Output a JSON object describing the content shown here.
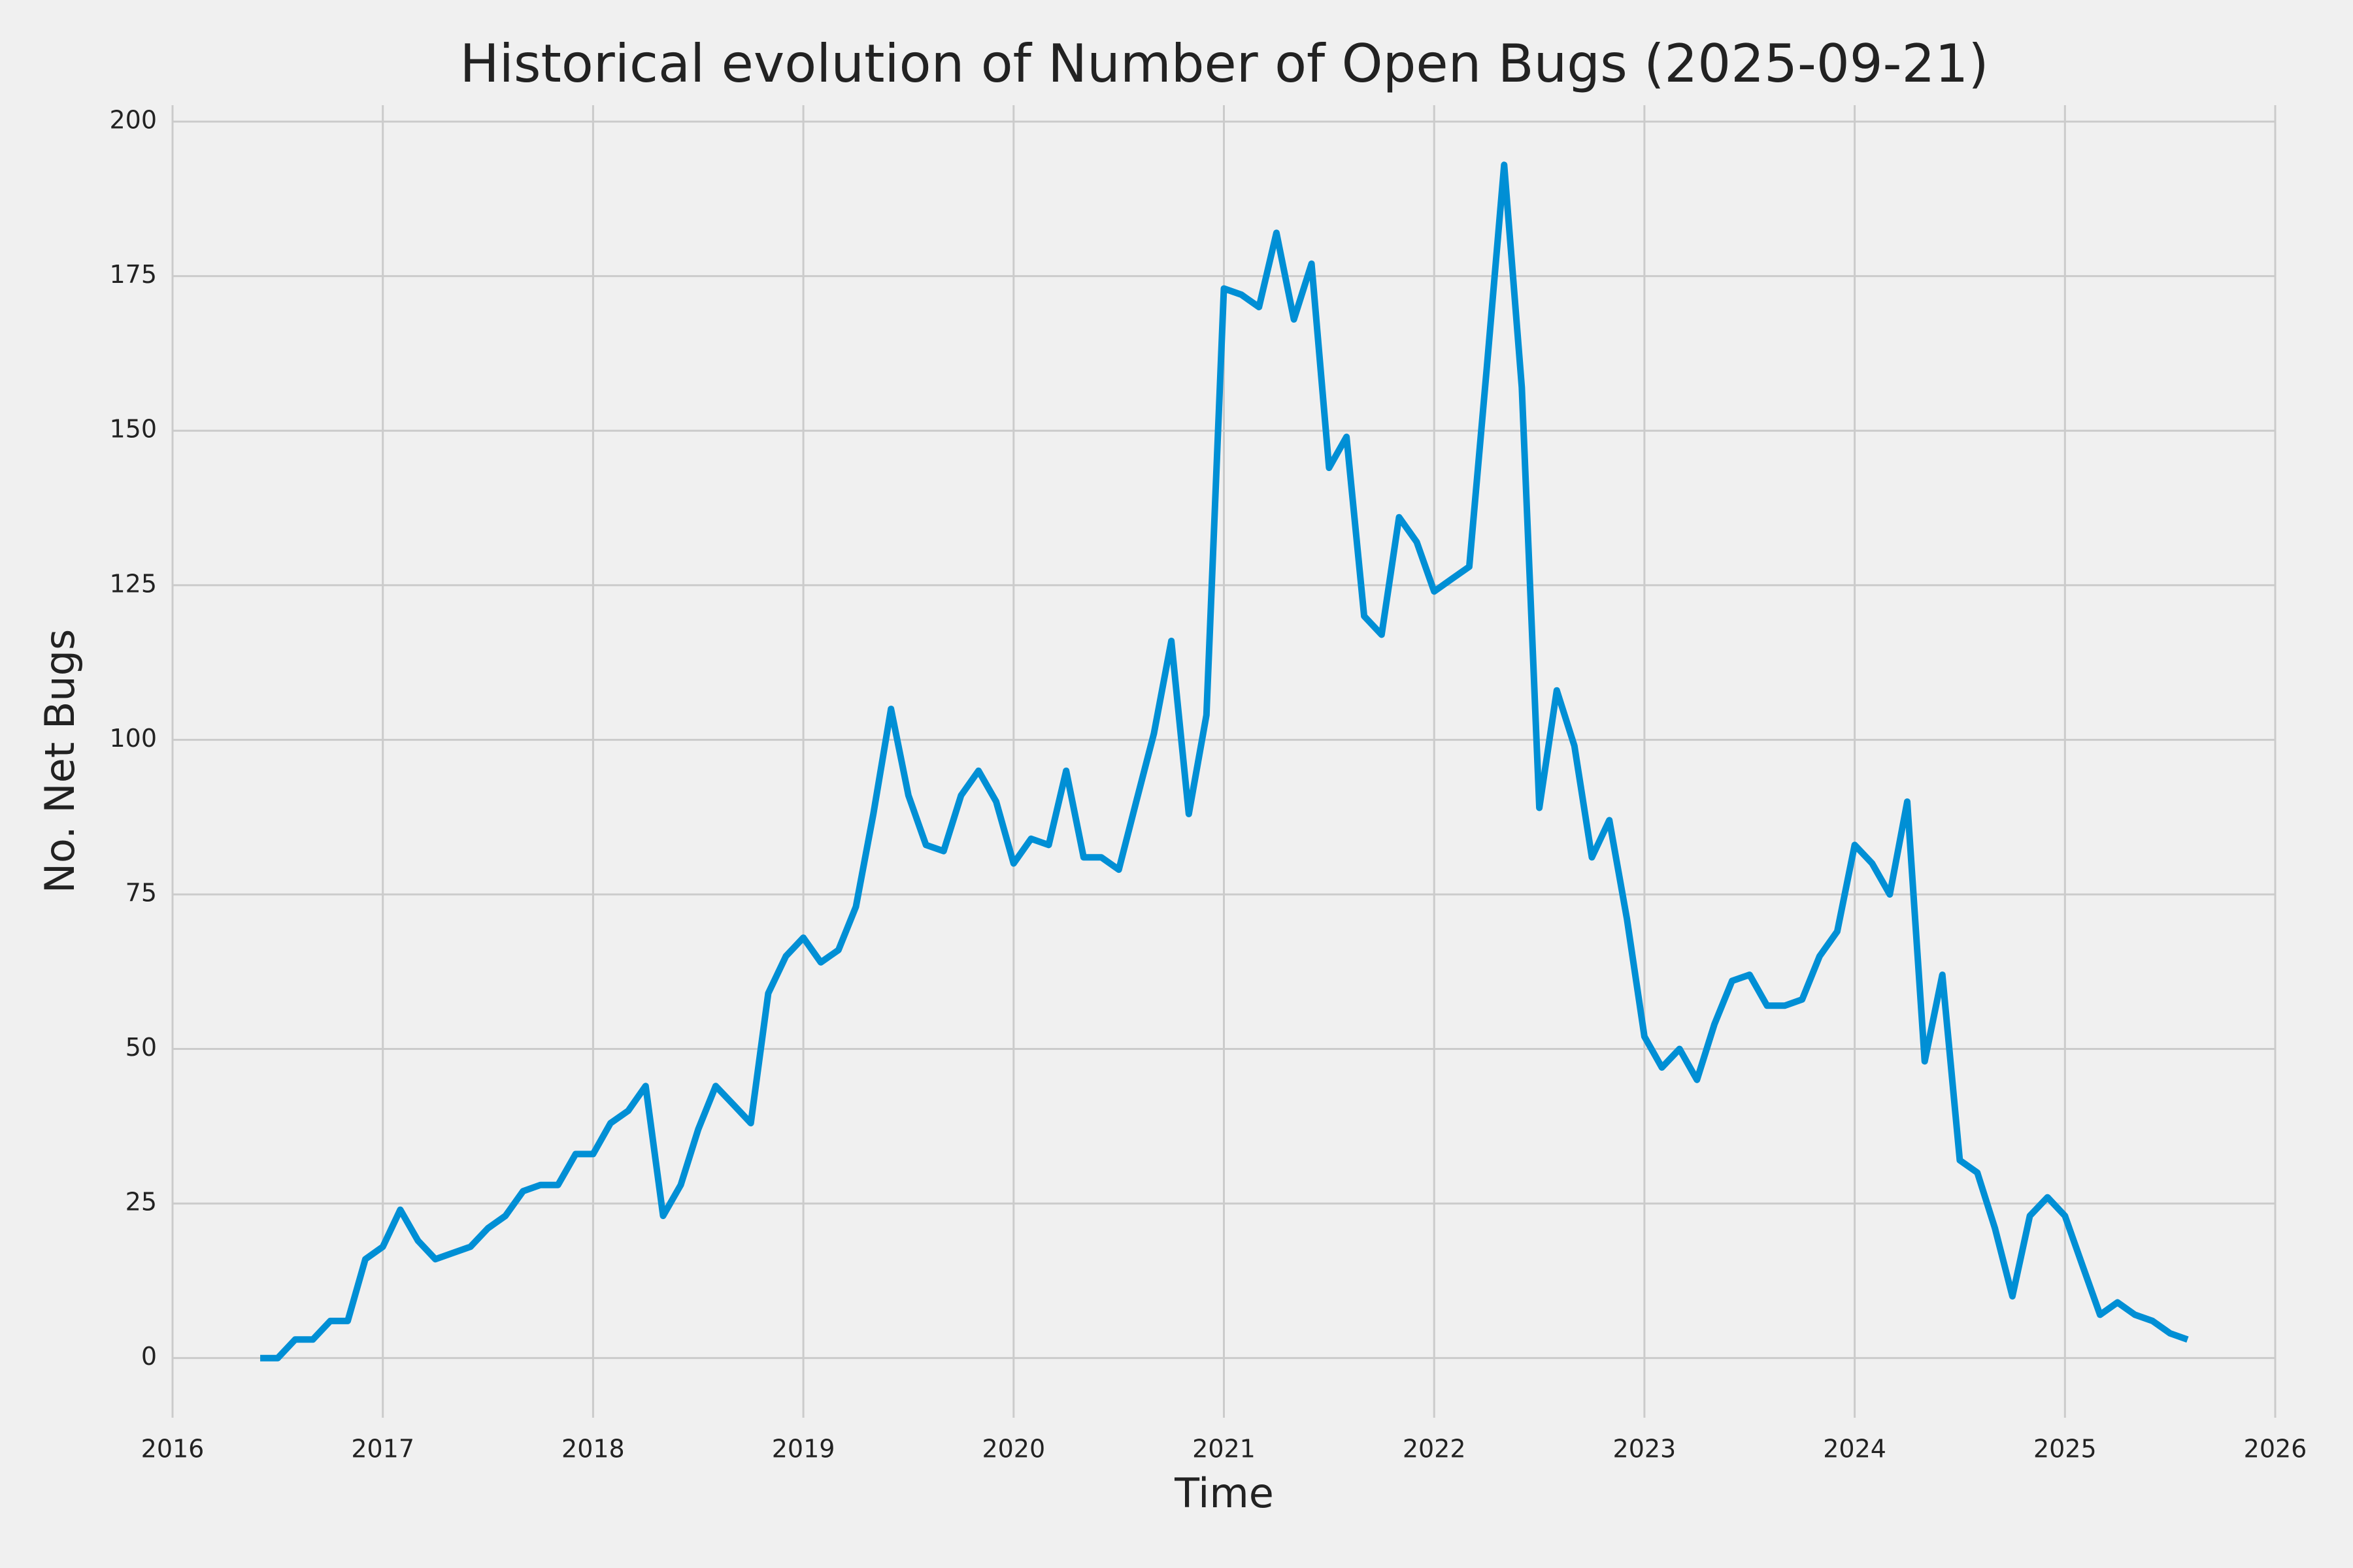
{
  "chart_data": {
    "type": "line",
    "title": "Historical evolution of Number of Open Bugs (2025-09-21)",
    "xlabel": "Time",
    "ylabel": "No. Net Bugs",
    "x": [
      2016.417,
      2016.5,
      2016.583,
      2016.667,
      2016.75,
      2016.833,
      2016.917,
      2017.0,
      2017.083,
      2017.167,
      2017.25,
      2017.333,
      2017.417,
      2017.5,
      2017.583,
      2017.667,
      2017.75,
      2017.833,
      2017.917,
      2018.0,
      2018.083,
      2018.167,
      2018.25,
      2018.333,
      2018.417,
      2018.5,
      2018.583,
      2018.667,
      2018.75,
      2018.833,
      2018.917,
      2019.0,
      2019.083,
      2019.167,
      2019.25,
      2019.333,
      2019.417,
      2019.5,
      2019.583,
      2019.667,
      2019.75,
      2019.833,
      2019.917,
      2020.0,
      2020.083,
      2020.167,
      2020.25,
      2020.333,
      2020.417,
      2020.5,
      2020.583,
      2020.667,
      2020.75,
      2020.833,
      2020.917,
      2021.0,
      2021.083,
      2021.167,
      2021.25,
      2021.333,
      2021.417,
      2021.5,
      2021.583,
      2021.667,
      2021.75,
      2021.833,
      2021.917,
      2022.0,
      2022.083,
      2022.167,
      2022.25,
      2022.333,
      2022.417,
      2022.5,
      2022.583,
      2022.667,
      2022.75,
      2022.833,
      2022.917,
      2023.0,
      2023.083,
      2023.167,
      2023.25,
      2023.333,
      2023.417,
      2023.5,
      2023.583,
      2023.667,
      2023.75,
      2023.833,
      2023.917,
      2024.0,
      2024.083,
      2024.167,
      2024.25,
      2024.333,
      2024.417,
      2024.5,
      2024.583,
      2024.667,
      2024.75,
      2024.833,
      2024.917,
      2025.0,
      2025.083,
      2025.167,
      2025.25,
      2025.333,
      2025.417,
      2025.5,
      2025.583
    ],
    "series": [
      {
        "name": "No. Net Bugs",
        "color": "#008fd5",
        "values": [
          0,
          0,
          3,
          3,
          6,
          6,
          16,
          18,
          24,
          19,
          16,
          17,
          18,
          21,
          23,
          27,
          28,
          28,
          33,
          33,
          38,
          40,
          44,
          23,
          28,
          37,
          44,
          41,
          38,
          59,
          65,
          68,
          64,
          66,
          73,
          88,
          105,
          91,
          83,
          82,
          91,
          95,
          90,
          80,
          84,
          83,
          95,
          81,
          81,
          79,
          90,
          101,
          116,
          88,
          104,
          173,
          172,
          170,
          182,
          168,
          177,
          144,
          149,
          120,
          117,
          136,
          132,
          124,
          126,
          128,
          160,
          193,
          157,
          89,
          108,
          99,
          81,
          87,
          71,
          52,
          47,
          50,
          45,
          54,
          61,
          62,
          57,
          57,
          58,
          65,
          69,
          83,
          80,
          75,
          90,
          48,
          62,
          32,
          30,
          21,
          10,
          23,
          26,
          23,
          15,
          7,
          9,
          7,
          6,
          4,
          3
        ]
      }
    ],
    "xlim": [
      2016,
      2026
    ],
    "xticks": [
      2016,
      2017,
      2018,
      2019,
      2020,
      2021,
      2022,
      2023,
      2024,
      2025,
      2026
    ],
    "ylim": [
      -9.65,
      202.65
    ],
    "yticks": [
      0,
      25,
      50,
      75,
      100,
      125,
      150,
      175,
      200
    ],
    "grid": true
  }
}
